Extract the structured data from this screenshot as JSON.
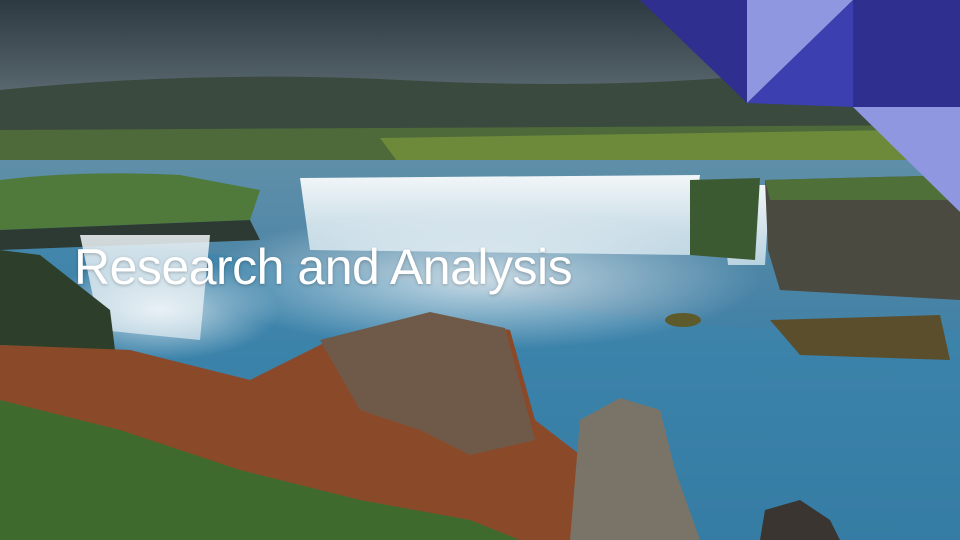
{
  "slide": {
    "title": "Research and Analysis",
    "background": "waterfall-landscape-photo",
    "colors": {
      "accent_dark": "#2f2f8f",
      "accent_mid": "#3b3fb0",
      "accent_light": "#8f97e0",
      "title_text": "#ffffff"
    }
  }
}
